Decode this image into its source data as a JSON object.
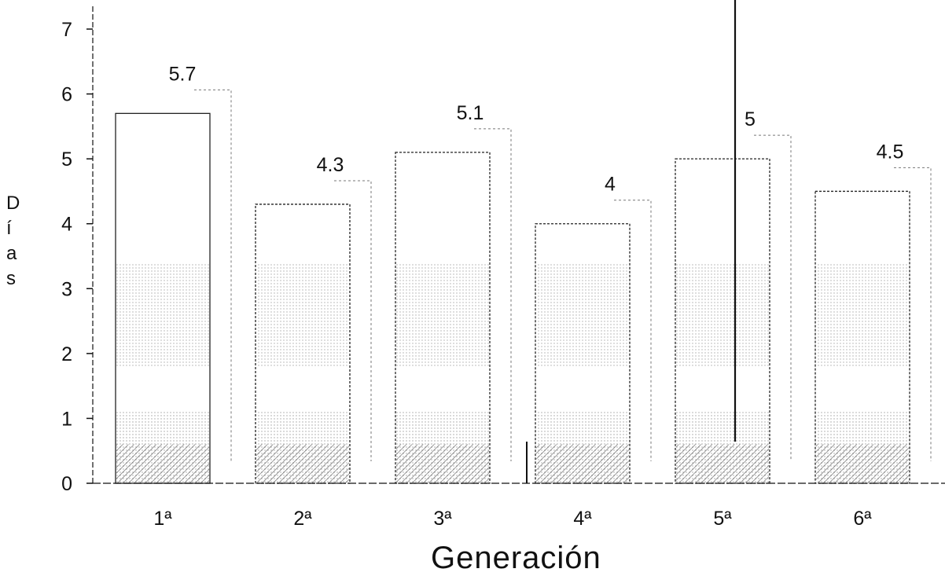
{
  "chart_data": {
    "type": "bar",
    "xlabel": "Generación",
    "ylabel": "Días",
    "categories": [
      "1ª",
      "2ª",
      "3ª",
      "4ª",
      "5ª",
      "6ª"
    ],
    "values": [
      5.7,
      4.3,
      5.1,
      4,
      5,
      4.5
    ],
    "data_labels": [
      "5.7",
      "4.3",
      "5.1",
      "4",
      "5",
      "4.5"
    ],
    "ylim": [
      0,
      7
    ],
    "yticks": [
      0,
      1,
      2,
      3,
      4,
      5,
      6,
      7
    ],
    "grid": false,
    "legend": "none",
    "colors": {
      "bar_fill": "#ffffff",
      "bar_shading": "#555555",
      "axis": "#111111"
    }
  }
}
